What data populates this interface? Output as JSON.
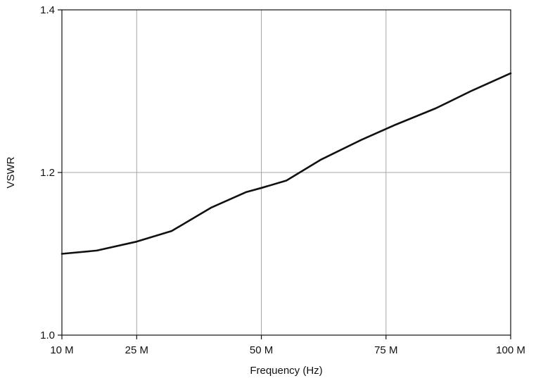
{
  "chart_data": {
    "type": "line",
    "title": "",
    "xlabel": "Frequency (Hz)",
    "ylabel": "VSWR",
    "x_tick_values": [
      10,
      25,
      50,
      75,
      100
    ],
    "x_tick_labels": [
      "10 M",
      "25 M",
      "50 M",
      "75 M",
      "100 M"
    ],
    "y_tick_values": [
      1.0,
      1.2,
      1.4
    ],
    "y_tick_labels": [
      "1.0",
      "1.2",
      "1.4"
    ],
    "xlim": [
      10,
      100
    ],
    "ylim": [
      1.0,
      1.4
    ],
    "grid": true,
    "series": [
      {
        "x": [
          10,
          17,
          25,
          32,
          40,
          47,
          50,
          55,
          62,
          70,
          77,
          85,
          92,
          100
        ],
        "y": [
          1.1,
          1.104,
          1.115,
          1.128,
          1.157,
          1.176,
          1.181,
          1.19,
          1.216,
          1.24,
          1.259,
          1.279,
          1.3,
          1.322
        ]
      }
    ],
    "colors": {
      "line": "#111111",
      "grid": "#a6a6a6",
      "axis": "#111111"
    }
  }
}
